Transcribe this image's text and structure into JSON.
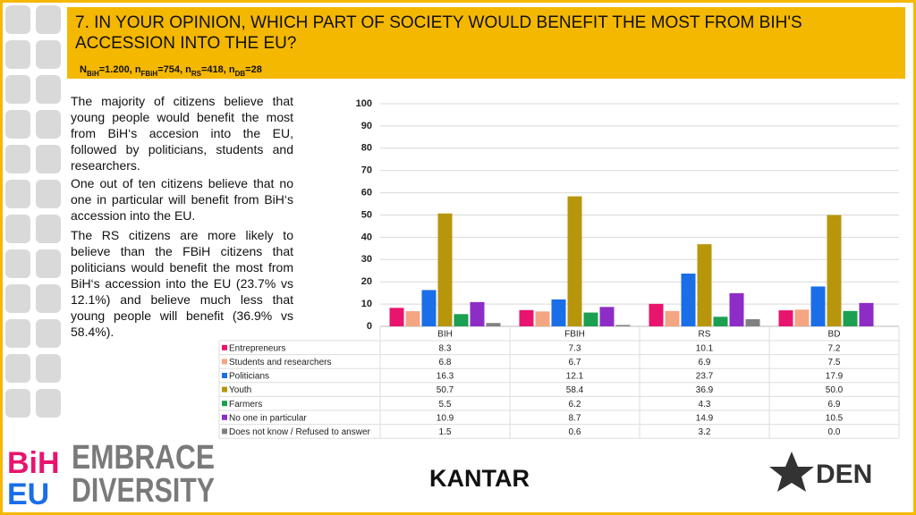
{
  "header": {
    "title": "7. IN YOUR OPINION, WHICH PART OF SOCIETY WOULD BENEFIT THE MOST FROM BIH'S ACCESSION INTO THE EU?",
    "sample": [
      [
        "N",
        "BiH",
        "=1.200, "
      ],
      [
        "n",
        "FBiH",
        "=754, "
      ],
      [
        "n",
        "RS",
        "=418, "
      ],
      [
        "n",
        "DB",
        "=28"
      ]
    ]
  },
  "text": [
    "The majority of citizens believe that young people would benefit the most from BiH‘s accesion into the EU, followed by politicians, students and researchers.",
    "One out of ten citizens believe that no one in particular will benefit from BiH‘s accession into the EU.",
    "The RS citizens are more likely to believe than the FBiH citizens that politicians would benefit the most from BiH‘s accession into the EU (23.7% vs 12.1%) and believe much less that young people will benefit (36.9% vs 58.4%)."
  ],
  "logos": {
    "bih": "BiH",
    "eu": "EU",
    "embrace": "EMBRACE",
    "diversity": "DIVERSITY",
    "kantar": "KANTAR",
    "den": "DEN"
  },
  "chart_data": {
    "type": "bar",
    "categories": [
      "BIH",
      "FBIH",
      "RS",
      "BD"
    ],
    "series": [
      {
        "name": "Entrepreneurs",
        "color": "#e8146e",
        "values": [
          8.3,
          7.3,
          10.1,
          7.2
        ]
      },
      {
        "name": "Students and researchers",
        "color": "#f4a582",
        "values": [
          6.8,
          6.7,
          6.9,
          7.5
        ]
      },
      {
        "name": "Politicians",
        "color": "#1a6ee8",
        "values": [
          16.3,
          12.1,
          23.7,
          17.9
        ]
      },
      {
        "name": "Youth",
        "color": "#b8960c",
        "values": [
          50.7,
          58.4,
          36.9,
          50
        ],
        "value_labels": [
          "50.7",
          "58.4",
          "36.9",
          "50.0"
        ]
      },
      {
        "name": "Farmers",
        "color": "#1aa050",
        "values": [
          5.5,
          6.2,
          4.3,
          6.9
        ]
      },
      {
        "name": "No one in particular",
        "color": "#8e2dc6",
        "values": [
          10.9,
          8.7,
          14.9,
          10.5
        ]
      },
      {
        "name": "Does not know / Refused to answer",
        "color": "#808080",
        "values": [
          1.5,
          0.6,
          3.2,
          0
        ],
        "value_labels": [
          "1.5",
          "0.6",
          "3.2",
          "0.0"
        ]
      }
    ],
    "ylim": [
      0,
      100
    ],
    "yticks": [
      0,
      10,
      20,
      30,
      40,
      50,
      60,
      70,
      80,
      90,
      100
    ],
    "grid": true
  }
}
